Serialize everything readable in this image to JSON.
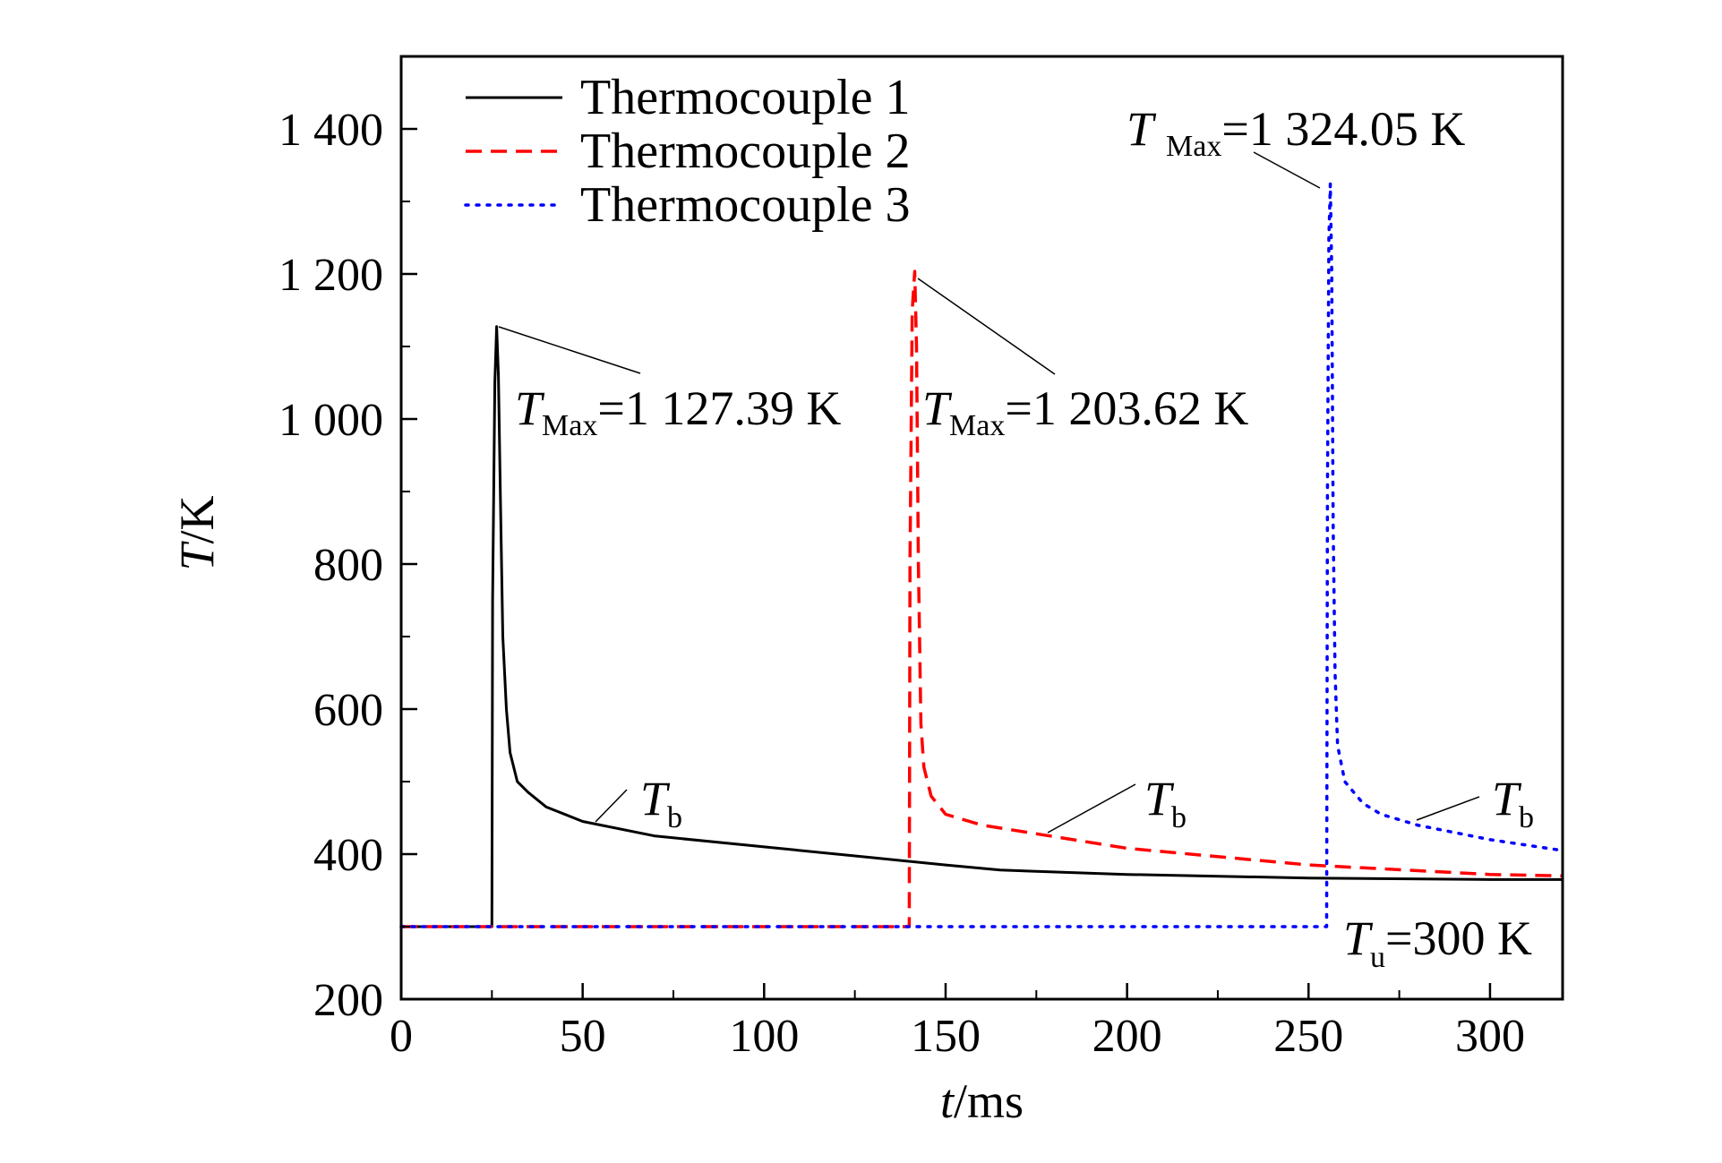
{
  "chart_data": {
    "type": "line",
    "xlabel_var": "t",
    "xlabel_unit": "/ms",
    "ylabel_var": "T",
    "ylabel_unit": "/K",
    "xlim": [
      0,
      320
    ],
    "ylim": [
      200,
      1500
    ],
    "x_ticks": [
      {
        "value": 0,
        "label": "0"
      },
      {
        "value": 50,
        "label": "50"
      },
      {
        "value": 100,
        "label": "100"
      },
      {
        "value": 150,
        "label": "150"
      },
      {
        "value": 200,
        "label": "200"
      },
      {
        "value": 250,
        "label": "250"
      },
      {
        "value": 300,
        "label": "300"
      }
    ],
    "y_ticks": [
      {
        "value": 200,
        "label": "200"
      },
      {
        "value": 400,
        "label": "400"
      },
      {
        "value": 600,
        "label": "600"
      },
      {
        "value": 800,
        "label": "800"
      },
      {
        "value": 1000,
        "label": "1 000"
      },
      {
        "value": 1200,
        "label": "1 200"
      },
      {
        "value": 1400,
        "label": "1 400"
      }
    ],
    "legend_placement": "top-left",
    "series": [
      {
        "name": "Thermocouple 1",
        "color": "#000000",
        "style": "solid",
        "x": [
          0,
          25,
          25.2,
          25.8,
          26.3,
          26.8,
          27.3,
          28,
          29,
          30,
          32,
          35,
          40,
          50,
          70,
          100,
          130,
          150,
          165,
          200,
          250,
          300,
          320
        ],
        "y": [
          300,
          300,
          750,
          1050,
          1127.39,
          1060,
          900,
          700,
          600,
          540,
          500,
          485,
          465,
          445,
          425,
          410,
          395,
          385,
          378,
          372,
          367,
          365,
          365
        ]
      },
      {
        "name": "Thermocouple 2",
        "color": "#ff0000",
        "style": "dashed",
        "x": [
          0,
          140,
          140.2,
          140.8,
          141.5,
          142,
          142.5,
          143.2,
          144,
          146,
          150,
          160,
          175,
          200,
          250,
          300,
          320
        ],
        "y": [
          300,
          300,
          800,
          1150,
          1203.62,
          1100,
          800,
          580,
          520,
          480,
          455,
          440,
          428,
          408,
          385,
          372,
          370
        ]
      },
      {
        "name": "Thermocouple 3",
        "color": "#0000ff",
        "style": "dotted",
        "x": [
          0,
          255,
          255.2,
          255.6,
          256,
          256.4,
          256.8,
          257.3,
          258,
          260,
          265,
          270,
          280,
          300,
          320
        ],
        "y": [
          300,
          300,
          900,
          1250,
          1324.05,
          1200,
          850,
          650,
          550,
          500,
          470,
          455,
          440,
          420,
          405
        ]
      }
    ],
    "annotations": {
      "tmax1": {
        "sym": "T",
        "sub": "Max",
        "text": "=1 127.39 K"
      },
      "tmax2": {
        "sym": "T",
        "sub": "Max",
        "text": "=1 203.62 K"
      },
      "tmax3": {
        "sym": "T",
        "sub": "Max",
        "text": "=1 324.05 K"
      },
      "tb1": {
        "sym": "T",
        "sub": "b"
      },
      "tb2": {
        "sym": "T",
        "sub": "b"
      },
      "tb3": {
        "sym": "T",
        "sub": "b"
      },
      "tu": {
        "sym": "T",
        "sub": "u",
        "text": "=300 K"
      }
    }
  }
}
